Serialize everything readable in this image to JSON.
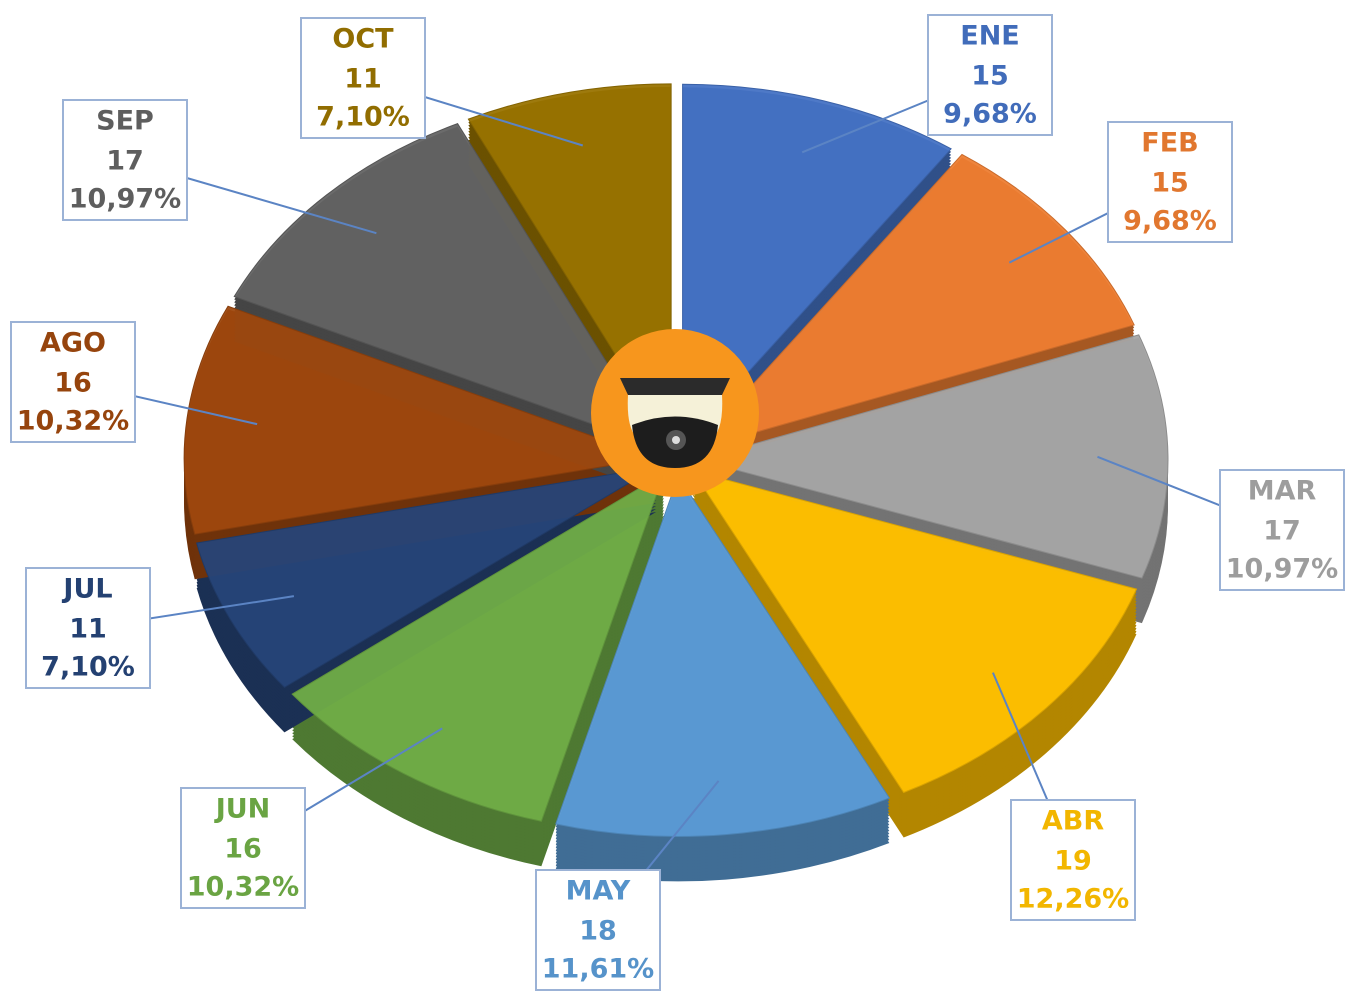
{
  "chart_data": {
    "type": "pie",
    "categories": [
      "ENE",
      "FEB",
      "MAR",
      "ABR",
      "MAY",
      "JUN",
      "JUL",
      "AGO",
      "SEP",
      "OCT"
    ],
    "values": [
      9.68,
      9.68,
      10.97,
      12.26,
      11.61,
      10.32,
      7.1,
      10.32,
      10.97,
      7.1
    ],
    "value_labels": [
      "9,68%",
      "9,68%",
      "10,97%",
      "12,26%",
      "11,61%",
      "10,32%",
      "7,10%",
      "10,32%",
      "10,97%",
      "7,10%"
    ],
    "counts": [
      15,
      15,
      17,
      19,
      18,
      16,
      11,
      16,
      17,
      11
    ],
    "colors": [
      "#4472c4",
      "#ed7d31",
      "#a5a5a5",
      "#ffc000",
      "#5b9bd5",
      "#70ad47",
      "#264478",
      "#9e480e",
      "#636363",
      "#997300"
    ]
  }
}
